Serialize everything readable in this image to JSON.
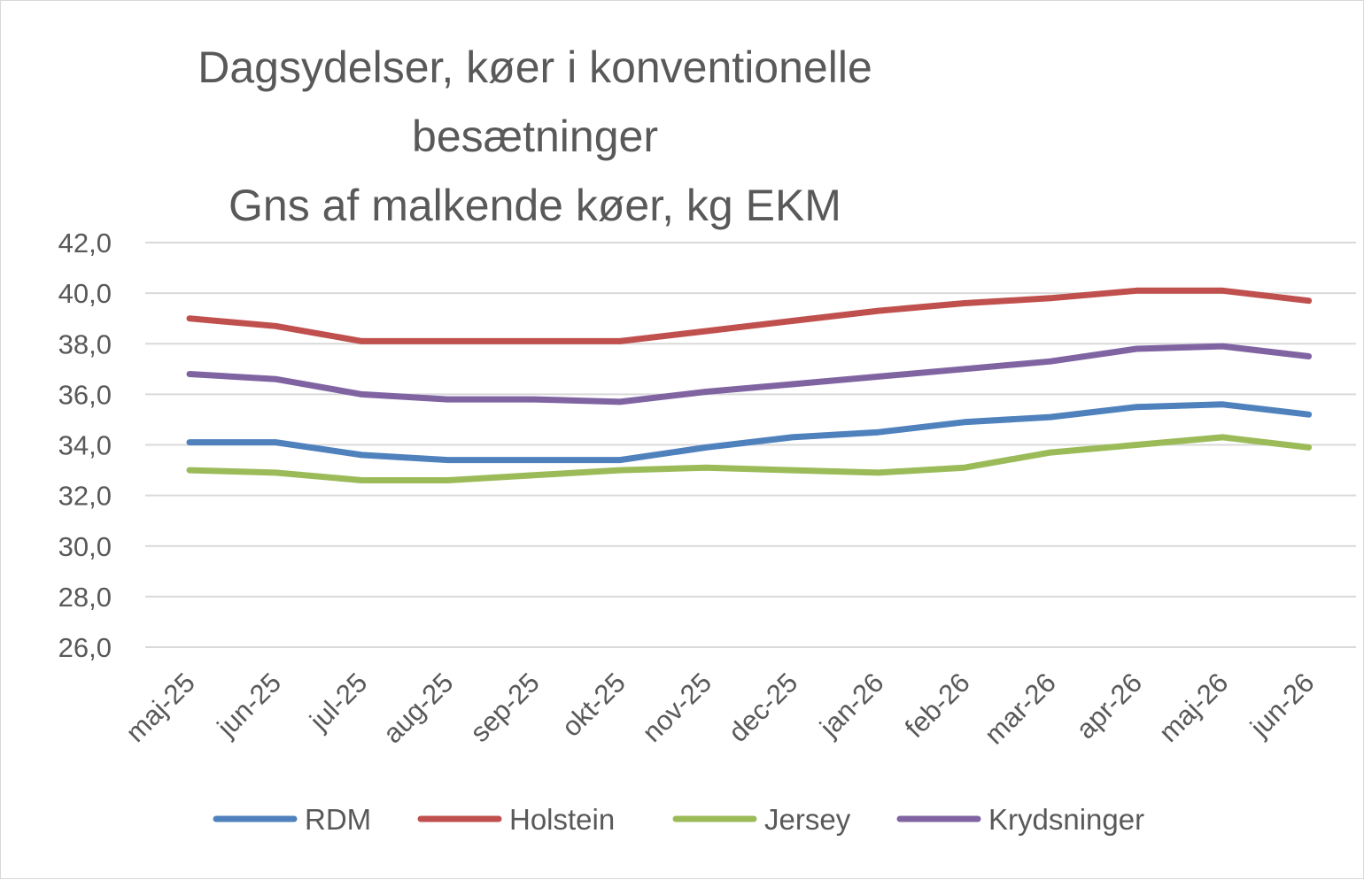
{
  "colors": {
    "RDM": "#4f81bd",
    "Holstein": "#c0504d",
    "Jersey": "#9bbb59",
    "Krydsninger": "#8064a2",
    "text": "#595959",
    "grid": "#d9d9d9"
  },
  "chart_data": {
    "type": "line",
    "title": [
      "Dagsydelser, køer i konventionelle",
      "besætninger",
      "Gns af malkende køer, kg EKM"
    ],
    "xlabel": "",
    "ylabel": "",
    "ylim": [
      26,
      42
    ],
    "yticks": [
      "42,0",
      "40,0",
      "38,0",
      "36,0",
      "34,0",
      "32,0",
      "30,0",
      "28,0",
      "26,0"
    ],
    "ytick_values": [
      42,
      40,
      38,
      36,
      34,
      32,
      30,
      28,
      26
    ],
    "grid": true,
    "legend_position": "bottom",
    "categories": [
      "maj-25",
      "jun-25",
      "jul-25",
      "aug-25",
      "sep-25",
      "okt-25",
      "nov-25",
      "dec-25",
      "jan-26",
      "feb-26",
      "mar-26",
      "apr-26",
      "maj-26",
      "jun-26"
    ],
    "series": [
      {
        "name": "RDM",
        "values": [
          34.1,
          34.1,
          33.6,
          33.4,
          33.4,
          33.4,
          33.9,
          34.3,
          34.5,
          34.9,
          35.1,
          35.5,
          35.6,
          35.2
        ]
      },
      {
        "name": "Holstein",
        "values": [
          39.0,
          38.7,
          38.1,
          38.1,
          38.1,
          38.1,
          38.5,
          38.9,
          39.3,
          39.6,
          39.8,
          40.1,
          40.1,
          39.7
        ]
      },
      {
        "name": "Jersey",
        "values": [
          33.0,
          32.9,
          32.6,
          32.6,
          32.8,
          33.0,
          33.1,
          33.0,
          32.9,
          33.1,
          33.7,
          34.0,
          34.3,
          33.9
        ]
      },
      {
        "name": "Krydsninger",
        "values": [
          36.8,
          36.6,
          36.0,
          35.8,
          35.8,
          35.7,
          36.1,
          36.4,
          36.7,
          37.0,
          37.3,
          37.8,
          37.9,
          37.5
        ]
      }
    ]
  }
}
